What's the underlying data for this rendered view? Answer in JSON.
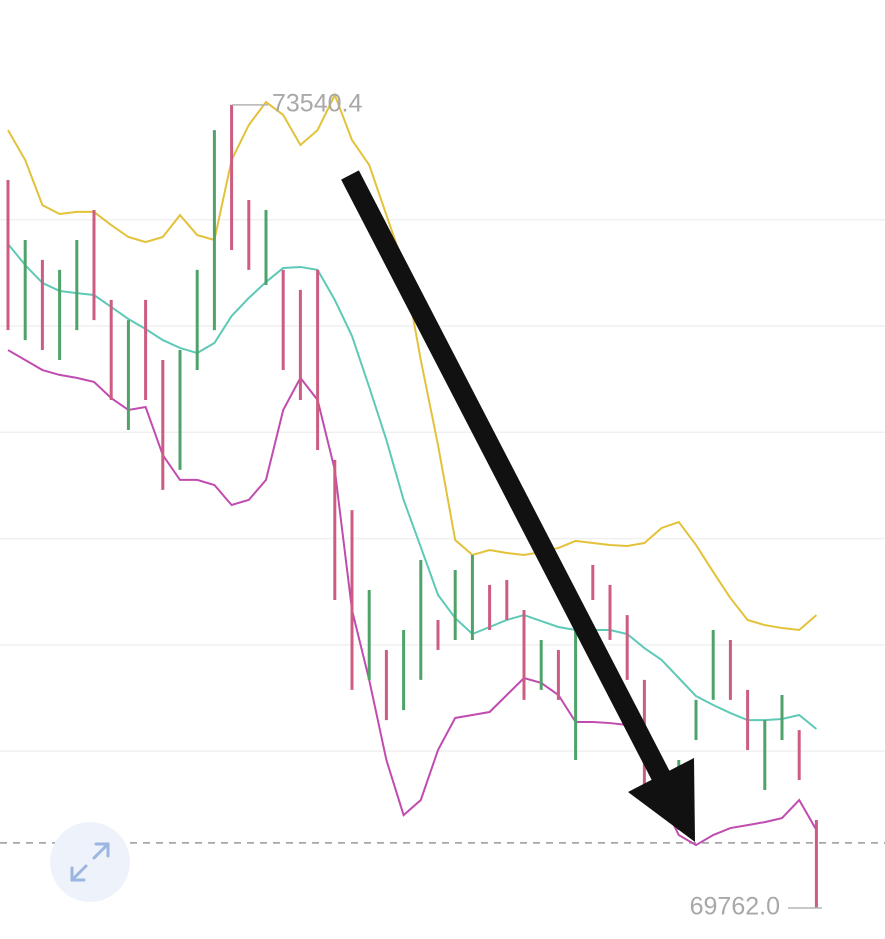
{
  "chart_data": {
    "type": "ohlc",
    "ylim": [
      69616,
      74034
    ],
    "grid": true,
    "gridlines": [
      73000,
      72500,
      72000,
      71500,
      71000,
      70500
    ],
    "current_price": 70068,
    "annotations": [
      73540.4,
      {
        "value": 69762,
        "label": "69762.0"
      }
    ],
    "ohlc": {
      "up_color": "#4fa36a",
      "down_color": "#cc5d80",
      "open": [
        73150,
        72470,
        72780,
        72380,
        72520,
        73000,
        72590,
        72050,
        72590,
        72300,
        71860,
        72330,
        72520,
        73500,
        73060,
        72720,
        72730,
        72630,
        72730,
        71830,
        71600,
        70870,
        70940,
        70730,
        70870,
        71100,
        71050,
        71050,
        71260,
        71280,
        71130,
        70810,
        70950,
        70500,
        71350,
        71250,
        71110,
        70800,
        70430,
        70160,
        70580,
        70770,
        70990,
        70760,
        70350,
        70580,
        70570,
        70140
      ],
      "high": [
        73187,
        72905,
        72811,
        72764,
        72905,
        73046,
        72623,
        72528,
        72623,
        72340,
        72387,
        72764,
        73422,
        73540.4,
        73093,
        73046,
        72764,
        72670,
        72764,
        71870,
        71634,
        71258,
        70976,
        71070,
        71399,
        71117,
        71352,
        71423,
        71282,
        71305,
        71164,
        71023,
        70976,
        71164,
        71376,
        71282,
        71140,
        70835,
        70458,
        70458,
        70741,
        71070,
        71023,
        70788,
        70646,
        70764,
        70599,
        70176
      ],
      "low": [
        72481,
        72434,
        72387,
        72340,
        72481,
        72528,
        72152,
        72011,
        72152,
        71729,
        71823,
        72293,
        72481,
        72858,
        72764,
        72693,
        72293,
        72152,
        71917,
        71211,
        70788,
        70835,
        70646,
        70693,
        70835,
        70976,
        71023,
        71023,
        71070,
        71117,
        70741,
        70788,
        70741,
        70458,
        71211,
        71023,
        70835,
        70270,
        70223,
        70129,
        70552,
        70741,
        70741,
        70505,
        70317,
        70552,
        70364,
        69762
      ],
      "close": [
        72520,
        72870,
        72420,
        72730,
        72870,
        72560,
        72190,
        72490,
        72190,
        71770,
        72350,
        72730,
        73380,
        72890,
        72800,
        73010,
        72330,
        72190,
        71960,
        71250,
        70830,
        71220,
        70680,
        71030,
        71360,
        71000,
        71320,
        71390,
        71090,
        71140,
        70780,
        71000,
        70770,
        71130,
        71230,
        71050,
        70870,
        70310,
        70250,
        70420,
        70710,
        71040,
        70770,
        70540,
        70610,
        70730,
        70400,
        69900
      ]
    },
    "lines": [
      {
        "color": "#e3c23a",
        "values": [
          73422,
          73281,
          73069,
          73027,
          73037,
          73037,
          72975,
          72919,
          72895,
          72919,
          73022,
          72928,
          72905,
          73281,
          73446,
          73554,
          73493,
          73352,
          73422,
          73587,
          73375,
          73258,
          73022,
          72787,
          72340,
          71940,
          71493,
          71423,
          71446,
          71432,
          71423,
          71437,
          71456,
          71489,
          71479,
          71470,
          71465,
          71479,
          71550,
          71578,
          71470,
          71343,
          71220,
          71117,
          71093,
          71079,
          71070,
          71140
        ]
      },
      {
        "color": "#5ec9b7",
        "values": [
          72886,
          72787,
          72703,
          72665,
          72655,
          72646,
          72590,
          72533,
          72486,
          72434,
          72397,
          72373,
          72420,
          72547,
          72632,
          72707,
          72773,
          72778,
          72764,
          72623,
          72453,
          72213,
          71964,
          71682,
          71460,
          71235,
          71126,
          71051,
          71084,
          71117,
          71140,
          71112,
          71084,
          71070,
          71070,
          71070,
          71051,
          70985,
          70929,
          70844,
          70759,
          70717,
          70679,
          70646,
          70646,
          70651,
          70670,
          70604
        ]
      },
      {
        "color": "#c04cb0",
        "values": [
          72387,
          72340,
          72293,
          72270,
          72256,
          72237,
          72161,
          72105,
          72119,
          71893,
          71776,
          71776,
          71752,
          71658,
          71682,
          71776,
          72105,
          72256,
          72152,
          71823,
          71164,
          70835,
          70458,
          70199,
          70270,
          70505,
          70656,
          70670,
          70684,
          70764,
          70844,
          70821,
          70764,
          70637,
          70637,
          70632,
          70623,
          70529,
          70270,
          70105,
          70058,
          70105,
          70138,
          70152,
          70166,
          70185,
          70270,
          70129
        ]
      }
    ]
  }
}
